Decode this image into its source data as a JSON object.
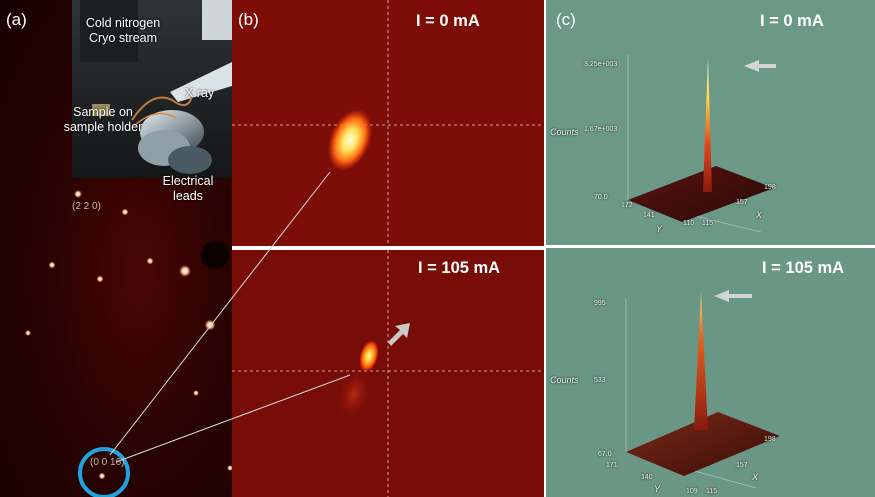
{
  "panel_a": {
    "label": "(a)",
    "annotations": {
      "cryo": "Cold nitrogen\nCryo stream",
      "xray": "X ray",
      "sample": "Sample on\nsample holder",
      "leads": "Electrical\nleads"
    },
    "reflections": {
      "r220": "(2 2 0)",
      "r0016": "(0 0 16)"
    },
    "colors": {
      "highlight_circle": "#1fa3dc"
    }
  },
  "panel_b": {
    "label": "(b)",
    "top_current": "I = 0 mA",
    "bottom_current": "I = 105 mA"
  },
  "panel_c": {
    "label": "(c)",
    "top_current": "I = 0 mA",
    "bottom_current": "I = 105 mA",
    "top_plot": {
      "zlabel": "Counts",
      "z_max_label": "3.25e+003",
      "z_mid_label": "1.67e+003",
      "z_min_label": "70.0",
      "x_label": "X",
      "y_label": "Y",
      "y_ticks": [
        "172",
        "141",
        "110"
      ],
      "x_ticks": [
        "115",
        "157",
        "198"
      ]
    },
    "bottom_plot": {
      "zlabel": "Counts",
      "z_max_label": "995",
      "z_mid_label": "533",
      "z_min_label": "67.0",
      "x_label": "X",
      "y_label": "Y",
      "y_ticks": [
        "171",
        "140",
        "109"
      ],
      "x_ticks": [
        "115",
        "157",
        "198"
      ]
    }
  }
}
